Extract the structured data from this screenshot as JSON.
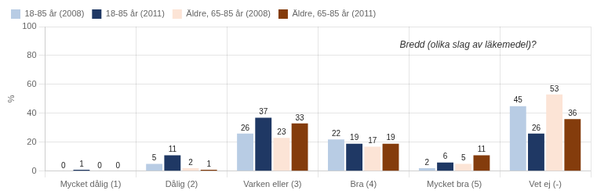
{
  "chart_data": {
    "type": "bar",
    "categories": [
      "Mycket dålig (1)",
      "Dålig (2)",
      "Varken eller (3)",
      "Bra (4)",
      "Mycket bra (5)",
      "Vet ej (-)"
    ],
    "series": [
      {
        "name": "18-85 år (2008)",
        "color": "#b8cce4",
        "values": [
          0,
          5,
          26,
          22,
          2,
          45
        ]
      },
      {
        "name": "18-85 år (2011)",
        "color": "#1f3864",
        "values": [
          1,
          11,
          37,
          19,
          6,
          26
        ]
      },
      {
        "name": "Äldre, 65-85 år (2008)",
        "color": "#fce4d6",
        "values": [
          0,
          2,
          23,
          17,
          5,
          53
        ]
      },
      {
        "name": "Äldre, 65-85 år (2011)",
        "color": "#843c0c",
        "values": [
          0,
          1,
          33,
          19,
          11,
          36
        ]
      }
    ],
    "y_label": "%",
    "ylim": [
      0,
      100
    ],
    "yticks": [
      0,
      20,
      40,
      60,
      80,
      100
    ],
    "annotation": "Bredd (olika slag av läkemedel)?",
    "grid": true,
    "legend": "upper left",
    "data_labels": true
  }
}
